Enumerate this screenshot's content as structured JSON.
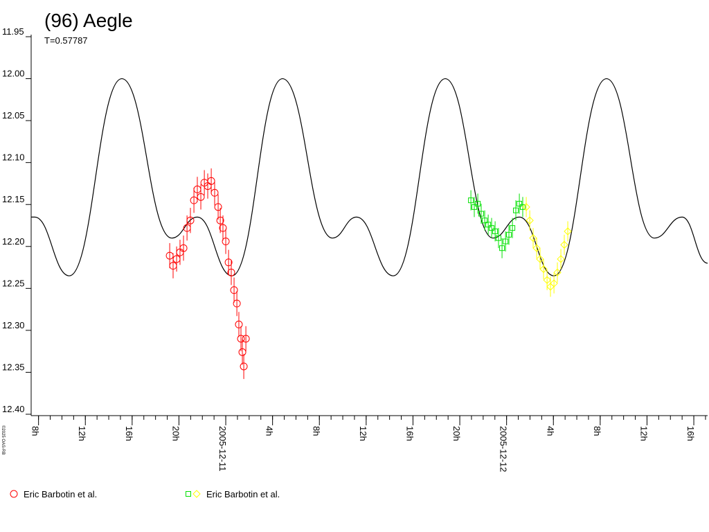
{
  "chart_data": {
    "type": "scatter",
    "title": "(96) Aegle",
    "subtitle": "T=0.57787",
    "credit": "©2025 OAS-RB",
    "xlim": [
      -16.63,
      41.18
    ],
    "ylim": [
      11.95,
      12.4
    ],
    "y_inverted": true,
    "xminor": 1,
    "xticks": [
      {
        "value": -16,
        "label": "8h"
      },
      {
        "value": -12,
        "label": "12h"
      },
      {
        "value": -8,
        "label": "16h"
      },
      {
        "value": -4,
        "label": "20h"
      },
      {
        "value": 0,
        "label": "2005-12-11"
      },
      {
        "value": 4,
        "label": "4h"
      },
      {
        "value": 8,
        "label": "8h"
      },
      {
        "value": 12,
        "label": "12h"
      },
      {
        "value": 16,
        "label": "16h"
      },
      {
        "value": 20,
        "label": "20h"
      },
      {
        "value": 24,
        "label": "2005-12-12"
      },
      {
        "value": 28,
        "label": "4h"
      },
      {
        "value": 32,
        "label": "8h"
      },
      {
        "value": 36,
        "label": "12h"
      },
      {
        "value": 40,
        "label": "16h"
      }
    ],
    "yticks": [
      11.95,
      {
        "value": 12,
        "label": "12.00"
      },
      12.05,
      {
        "value": 12.1,
        "label": "12.10"
      },
      12.15,
      {
        "value": 12.2,
        "label": "12.20"
      },
      12.25,
      {
        "value": 12.3,
        "label": "12.30"
      },
      12.35,
      {
        "value": 12.4,
        "label": "12.40"
      }
    ],
    "model": {
      "color": "#000000",
      "x": [
        -16.63,
        -16.32,
        -13.37,
        -8.88,
        -4.62,
        -2.43,
        0.53,
        4.85,
        9.11,
        11.18,
        14.32,
        18.76,
        22.84,
        25.09,
        28.05,
        32.54,
        36.63,
        39.0,
        41.18
      ],
      "values": [
        12.165,
        12.165,
        12.235,
        12.0,
        12.19,
        12.165,
        12.235,
        12.0,
        12.19,
        12.165,
        12.235,
        12.0,
        12.19,
        12.165,
        12.235,
        12.0,
        12.19,
        12.165,
        12.22
      ]
    },
    "series": [
      {
        "color": "#ff0000",
        "marker": "circle",
        "error": 0.015,
        "x": [
          -4.79,
          -4.5,
          -4.2,
          -3.91,
          -3.61,
          -3.31,
          -3.02,
          -2.72,
          -2.43,
          -2.13,
          -1.83,
          -1.54,
          -1.24,
          -0.95,
          -0.65,
          -0.47,
          -0.24,
          0,
          0.24,
          0.47,
          0.71,
          0.95,
          1.12,
          1.3,
          1.42,
          1.54,
          1.72
        ],
        "values": [
          12.211,
          12.223,
          12.215,
          12.207,
          12.202,
          12.178,
          12.169,
          12.145,
          12.132,
          12.141,
          12.124,
          12.128,
          12.122,
          12.136,
          12.153,
          12.169,
          12.178,
          12.194,
          12.219,
          12.231,
          12.252,
          12.268,
          12.293,
          12.31,
          12.326,
          12.343,
          12.31
        ]
      },
      {
        "color": "#00e000",
        "marker": "square",
        "error": 0.012,
        "x": [
          20.95,
          21.24,
          21.54,
          21.83,
          22.13,
          22.43,
          22.72,
          23.02,
          23.31,
          23.61,
          23.91,
          24.2,
          24.5,
          24.79,
          25.09,
          25.38
        ],
        "values": [
          12.145,
          12.153,
          12.149,
          12.161,
          12.169,
          12.174,
          12.178,
          12.182,
          12.19,
          12.202,
          12.194,
          12.186,
          12.178,
          12.157,
          12.149,
          12.153
        ]
      },
      {
        "color": "#ffff00",
        "marker": "diamond",
        "error": 0.012,
        "x": [
          25.68,
          25.98,
          26.27,
          26.57,
          26.86,
          27.16,
          27.46,
          27.75,
          28.05,
          28.34,
          28.64,
          28.93,
          29.23
        ],
        "values": [
          12.153,
          12.169,
          12.19,
          12.202,
          12.215,
          12.227,
          12.24,
          12.248,
          12.244,
          12.231,
          12.215,
          12.198,
          12.182
        ]
      }
    ],
    "legend": [
      {
        "text": "Eric Barbotin et al.",
        "series": [
          0
        ]
      },
      {
        "text": "Eric Barbotin et al.",
        "series": [
          1,
          2
        ]
      }
    ]
  }
}
